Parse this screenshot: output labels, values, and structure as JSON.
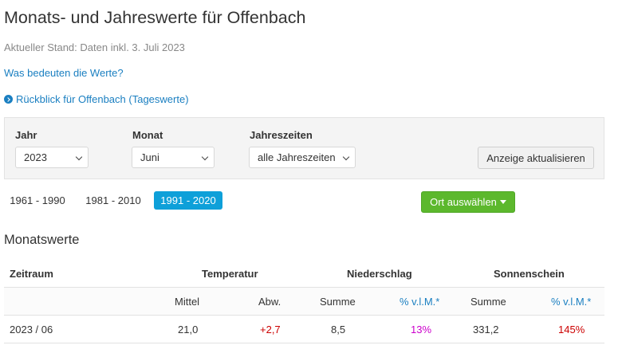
{
  "header": {
    "title": "Monats- und Jahreswerte für Offenbach",
    "status": "Aktueller Stand: Daten inkl. 3. Juli 2023",
    "link_what": "Was bedeuten die Werte?",
    "link_back": "Rückblick für Offenbach (Tageswerte)"
  },
  "filters": {
    "year_label": "Jahr",
    "year_value": "2023",
    "month_label": "Monat",
    "month_value": "Juni",
    "season_label": "Jahreszeiten",
    "season_value": "alle Jahreszeiten",
    "update_button": "Anzeige aktualisieren"
  },
  "periods": {
    "items": [
      "1961 - 1990",
      "1981 - 2010",
      "1991 - 2020"
    ],
    "active": "1991 - 2020"
  },
  "location_button": "Ort auswählen",
  "section_title": "Monatswerte",
  "table": {
    "groups": {
      "period": "Zeitraum",
      "temperature": "Temperatur",
      "precipitation": "Niederschlag",
      "sunshine": "Sonnenschein"
    },
    "subheaders": {
      "temp_mean": "Mittel",
      "temp_dev": "Abw.",
      "prec_sum": "Summe",
      "prec_pct": "% v.l.M.*",
      "sun_sum": "Summe",
      "sun_pct": "% v.l.M.*"
    },
    "rows": [
      {
        "period": "2023 / 06",
        "temp_mean": "21,0",
        "temp_dev": "+2,7",
        "prec_sum": "8,5",
        "prec_pct": "13%",
        "sun_sum": "331,2",
        "sun_pct": "145%"
      }
    ]
  },
  "colors": {
    "link": "#1a7fc1",
    "active_period": "#0ea0d9",
    "location_button": "#5cb82d",
    "positive_deviation": "#cc0000",
    "precipitation_pct": "#cc00cc"
  }
}
